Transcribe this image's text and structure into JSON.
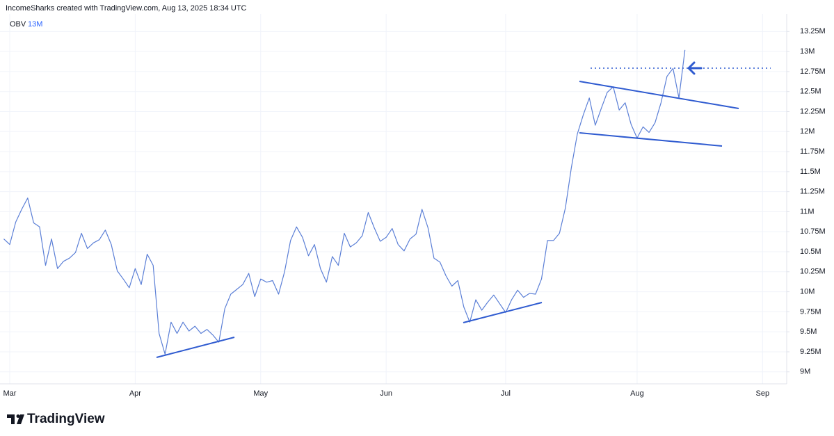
{
  "header": {
    "attribution": "IncomeSharks created with TradingView.com, Aug 13, 2025 18:34 UTC"
  },
  "footer": {
    "logo": "TradingView"
  },
  "chart_data": {
    "type": "line",
    "title": "OBV",
    "legend_value": "13M",
    "categories": [
      null,
      "Mar",
      null,
      null,
      null,
      null,
      null,
      null,
      null,
      null,
      null,
      null,
      null,
      null,
      null,
      null,
      null,
      null,
      null,
      null,
      null,
      null,
      "Apr",
      null,
      null,
      null,
      null,
      null,
      null,
      null,
      null,
      null,
      null,
      null,
      null,
      null,
      null,
      null,
      null,
      null,
      null,
      null,
      null,
      "May",
      null,
      null,
      null,
      null,
      null,
      null,
      null,
      null,
      null,
      null,
      null,
      null,
      null,
      null,
      null,
      null,
      null,
      null,
      null,
      null,
      "Jun",
      null,
      null,
      null,
      null,
      null,
      null,
      null,
      null,
      null,
      null,
      null,
      null,
      null,
      null,
      null,
      null,
      null,
      null,
      null,
      "Jul",
      null,
      null,
      null,
      null,
      null,
      null,
      null,
      null,
      null,
      null,
      null,
      null,
      null,
      null,
      null,
      null,
      null,
      null,
      null,
      null,
      null,
      "Aug",
      null,
      null,
      null,
      null,
      null,
      null,
      null,
      null,
      null,
      null,
      null,
      null,
      null,
      null,
      null,
      null,
      null,
      null,
      null,
      null,
      "Sep",
      null,
      null,
      null,
      null
    ],
    "series": [
      {
        "name": "OBV",
        "color": "#5b7fd6",
        "values": [
          10660000,
          10590000,
          10870000,
          11030000,
          11170000,
          10860000,
          10810000,
          10330000,
          10660000,
          10290000,
          10380000,
          10420000,
          10490000,
          10730000,
          10540000,
          10610000,
          10650000,
          10770000,
          10590000,
          10260000,
          10160000,
          10050000,
          10290000,
          10090000,
          10470000,
          10330000,
          9480000,
          9220000,
          9620000,
          9480000,
          9620000,
          9510000,
          9570000,
          9480000,
          9530000,
          9460000,
          9370000,
          9790000,
          9970000,
          10030000,
          10090000,
          10230000,
          9940000,
          10160000,
          10120000,
          10140000,
          9970000,
          10250000,
          10640000,
          10810000,
          10680000,
          10450000,
          10590000,
          10290000,
          10120000,
          10440000,
          10330000,
          10730000,
          10560000,
          10610000,
          10700000,
          10990000,
          10800000,
          10630000,
          10680000,
          10790000,
          10590000,
          10510000,
          10660000,
          10720000,
          11030000,
          10800000,
          10420000,
          10370000,
          10200000,
          10070000,
          10140000,
          9810000,
          9620000,
          9900000,
          9770000,
          9870000,
          9960000,
          9850000,
          9740000,
          9900000,
          10020000,
          9930000,
          9980000,
          9970000,
          10160000,
          10640000,
          10640000,
          10730000,
          11050000,
          11550000,
          11970000,
          12210000,
          12420000,
          12080000,
          12290000,
          12490000,
          12560000,
          12270000,
          12360000,
          12090000,
          11920000,
          12060000,
          11990000,
          12110000,
          12360000,
          12690000,
          12790000,
          12420000,
          13020000,
          null,
          null,
          null,
          null,
          null,
          null,
          null,
          null,
          null,
          null,
          null,
          null,
          null,
          null,
          null,
          null,
          null
        ]
      }
    ],
    "ylim": [
      8850000,
      13470000
    ],
    "yticks": [
      {
        "value": 9000000,
        "label": "9M"
      },
      {
        "value": 9250000,
        "label": "9.25M"
      },
      {
        "value": 9500000,
        "label": "9.5M"
      },
      {
        "value": 9750000,
        "label": "9.75M"
      },
      {
        "value": 10000000,
        "label": "10M"
      },
      {
        "value": 10250000,
        "label": "10.25M"
      },
      {
        "value": 10500000,
        "label": "10.5M"
      },
      {
        "value": 10750000,
        "label": "10.75M"
      },
      {
        "value": 11000000,
        "label": "11M"
      },
      {
        "value": 11250000,
        "label": "11.25M"
      },
      {
        "value": 11500000,
        "label": "11.5M"
      },
      {
        "value": 11750000,
        "label": "11.75M"
      },
      {
        "value": 12000000,
        "label": "12M"
      },
      {
        "value": 12250000,
        "label": "12.25M"
      },
      {
        "value": 12500000,
        "label": "12.5M"
      },
      {
        "value": 12750000,
        "label": "12.75M"
      },
      {
        "value": 13000000,
        "label": "13M"
      },
      {
        "value": 13250000,
        "label": "13.25M"
      }
    ],
    "grid": true
  }
}
